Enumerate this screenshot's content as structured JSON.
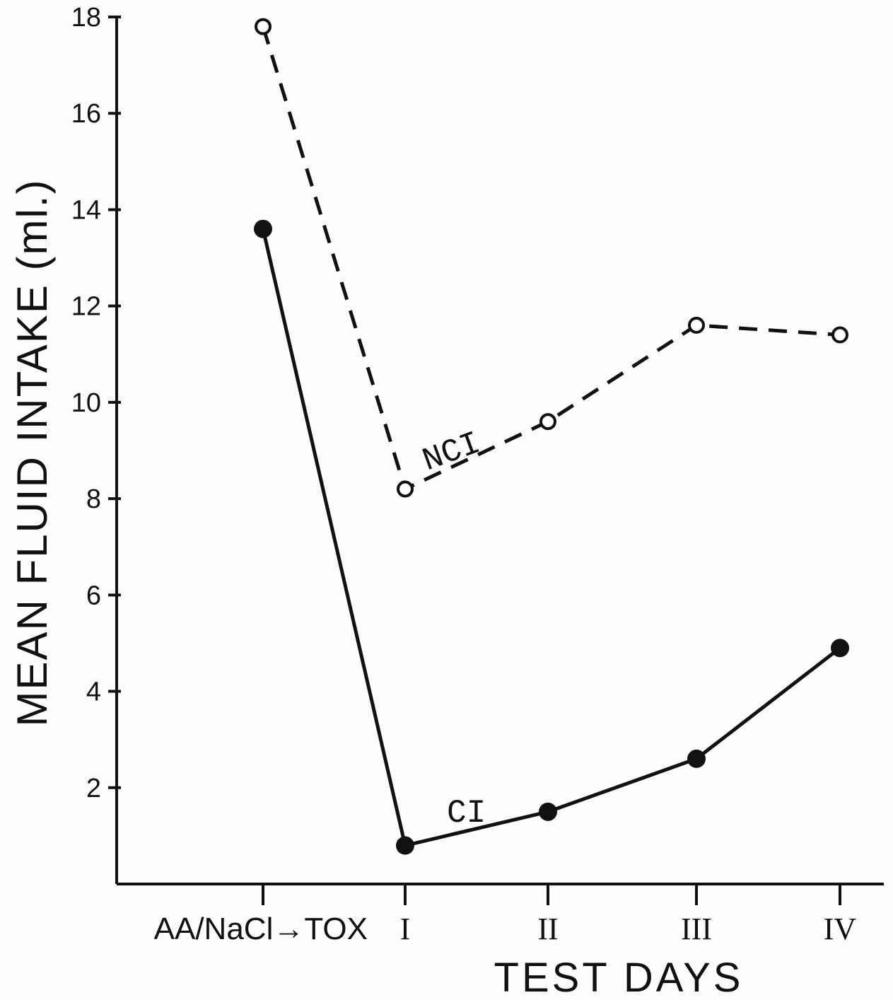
{
  "chart_data": {
    "type": "line",
    "x_categories": [
      "AA/NaCl→TOX",
      "I",
      "II",
      "III",
      "IV"
    ],
    "xlabel": "TEST DAYS",
    "ylabel": "MEAN FLUID INTAKE (ml.)",
    "ylim": [
      0,
      18
    ],
    "yticks": [
      2,
      4,
      6,
      8,
      10,
      12,
      14,
      16,
      18
    ],
    "grid": false,
    "series": [
      {
        "name": "NCI",
        "values": [
          17.8,
          8.2,
          9.6,
          11.6,
          11.4
        ],
        "line_style": "dashed",
        "marker": "open-circle",
        "color": "#111111"
      },
      {
        "name": "CI",
        "values": [
          13.6,
          0.8,
          1.5,
          2.6,
          4.9
        ],
        "line_style": "solid",
        "marker": "filled-circle",
        "color": "#111111"
      }
    ]
  }
}
